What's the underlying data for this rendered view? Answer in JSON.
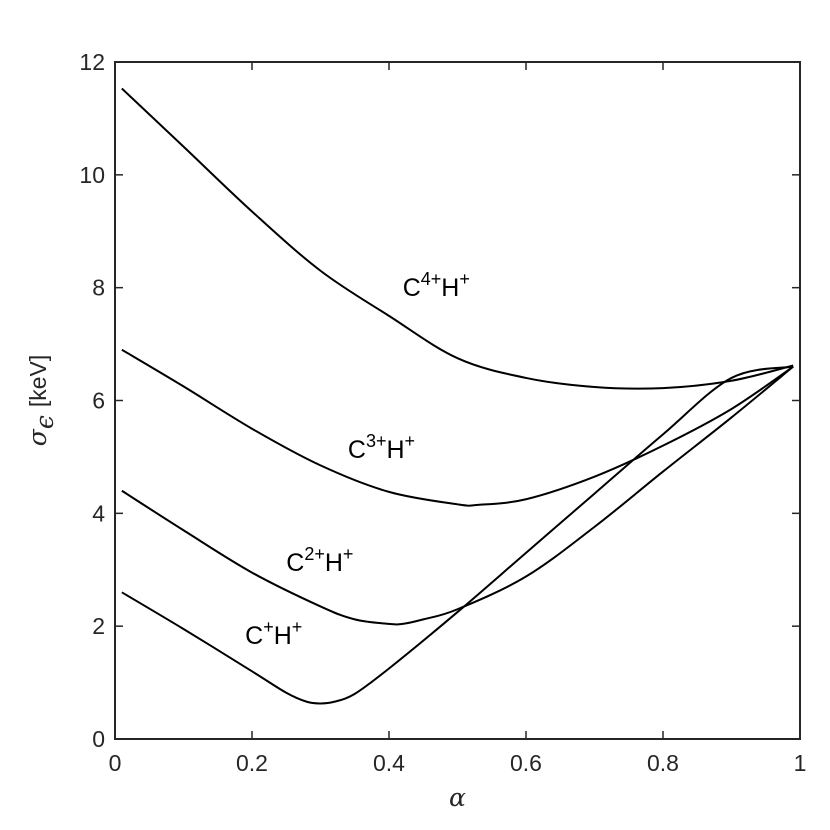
{
  "chart_data": {
    "type": "line",
    "xlabel": "α",
    "ylabel": {
      "symbol": "σ",
      "subscript": "ϵ",
      "unit": "[keV]"
    },
    "xlim": [
      0,
      1
    ],
    "ylim": [
      0,
      12
    ],
    "x_ticks": [
      "0",
      "0.2",
      "0.4",
      "0.6",
      "0.8",
      "1"
    ],
    "y_ticks": [
      "0",
      "2",
      "4",
      "6",
      "8",
      "10",
      "12"
    ],
    "grid": false,
    "box": true,
    "line_color": "#000000",
    "series": [
      {
        "name": "C4+H+",
        "label": {
          "base": "C",
          "sup1": "4+",
          "mid": "H",
          "sup2": "+"
        },
        "label_at": [
          0.42,
          7.85
        ],
        "x": [
          0.01,
          0.1,
          0.2,
          0.3,
          0.4,
          0.5,
          0.6,
          0.7,
          0.8,
          0.9,
          0.99
        ],
        "y": [
          11.53,
          10.5,
          9.35,
          8.3,
          7.5,
          6.75,
          6.4,
          6.24,
          6.22,
          6.35,
          6.62
        ]
      },
      {
        "name": "C3+H+",
        "label": {
          "base": "C",
          "sup1": "3+",
          "mid": "H",
          "sup2": "+"
        },
        "label_at": [
          0.34,
          4.98
        ],
        "x": [
          0.01,
          0.1,
          0.2,
          0.3,
          0.4,
          0.5,
          0.53,
          0.6,
          0.7,
          0.8,
          0.9,
          0.99
        ],
        "y": [
          6.9,
          6.25,
          5.5,
          4.85,
          4.38,
          4.16,
          4.15,
          4.25,
          4.65,
          5.2,
          5.85,
          6.6
        ]
      },
      {
        "name": "C2+H+",
        "label": {
          "base": "C",
          "sup1": "2+",
          "mid": "H",
          "sup2": "+"
        },
        "label_at": [
          0.25,
          2.98
        ],
        "x": [
          0.01,
          0.1,
          0.2,
          0.3,
          0.35,
          0.4,
          0.42,
          0.45,
          0.5,
          0.6,
          0.7,
          0.8,
          0.9,
          0.99
        ],
        "y": [
          4.4,
          3.7,
          2.95,
          2.35,
          2.12,
          2.04,
          2.04,
          2.12,
          2.3,
          2.88,
          3.76,
          4.74,
          5.7,
          6.6
        ]
      },
      {
        "name": "C+H+",
        "label": {
          "base": "C",
          "sup1": "+",
          "mid": "H",
          "sup2": "+"
        },
        "label_at": [
          0.19,
          1.68
        ],
        "x": [
          0.01,
          0.1,
          0.2,
          0.25,
          0.28,
          0.3,
          0.32,
          0.35,
          0.4,
          0.5,
          0.6,
          0.7,
          0.8,
          0.9,
          0.99
        ],
        "y": [
          2.6,
          1.95,
          1.2,
          0.82,
          0.66,
          0.63,
          0.66,
          0.8,
          1.25,
          2.25,
          3.3,
          4.35,
          5.4,
          6.4,
          6.6
        ]
      }
    ]
  }
}
